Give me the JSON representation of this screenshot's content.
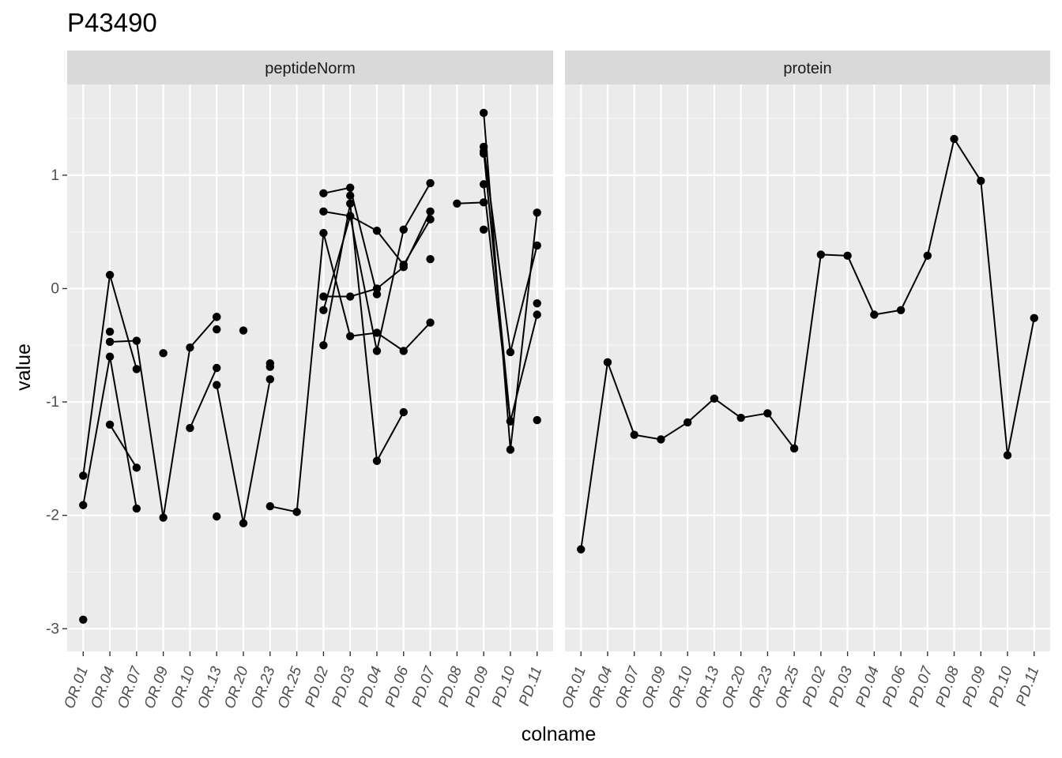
{
  "title": "P43490",
  "chart_data": {
    "type": "line",
    "ylabel": "value",
    "xlabel": "colname",
    "ylim": [
      -3.2,
      1.8
    ],
    "y_ticks": [
      -3,
      -2,
      -1,
      0,
      1
    ],
    "y_tick_labels": [
      "-3",
      "-2",
      "-1",
      "0",
      "1"
    ],
    "grid": true,
    "categories": [
      "OR.01",
      "OR.04",
      "OR.07",
      "OR.09",
      "OR.10",
      "OR.13",
      "OR.20",
      "OR.23",
      "OR.25",
      "PD.02",
      "PD.03",
      "PD.04",
      "PD.06",
      "PD.07",
      "PD.08",
      "PD.09",
      "PD.10",
      "PD.11"
    ],
    "panels": [
      {
        "name": "peptideNorm",
        "series": [
          {
            "values": [
              -1.65,
              0.12,
              -0.71,
              null,
              null,
              null,
              null,
              null,
              null,
              0.84,
              0.89,
              -0.05,
              null,
              null,
              null,
              1.25,
              -0.56,
              0.38
            ]
          },
          {
            "values": [
              -1.91,
              -0.6,
              -1.94,
              null,
              null,
              -0.25,
              null,
              -1.92,
              -1.97,
              0.49,
              -0.42,
              -0.39,
              -0.55,
              -0.3,
              null,
              1.55,
              -1.42,
              0.67
            ]
          },
          {
            "values": [
              null,
              -0.38,
              null,
              null,
              -1.23,
              -0.7,
              null,
              -0.69,
              null,
              0.68,
              0.64,
              -0.55,
              0.52,
              0.93,
              null,
              1.21,
              -1.17,
              -0.23
            ]
          },
          {
            "values": [
              null,
              -0.47,
              -0.46,
              -2.02,
              -0.52,
              -0.25,
              null,
              -0.66,
              null,
              -0.07,
              -0.07,
              0.0,
              0.19,
              0.68,
              null,
              0.92,
              -1.17,
              null
            ]
          },
          {
            "values": [
              null,
              -1.2,
              -1.58,
              null,
              null,
              -0.85,
              -2.07,
              -0.8,
              null,
              -0.19,
              0.64,
              0.51,
              0.21,
              0.61,
              null,
              0.52,
              null,
              null
            ]
          },
          {
            "values": [
              null,
              null,
              null,
              null,
              null,
              null,
              -0.37,
              null,
              null,
              -0.5,
              0.75,
              -1.52,
              -1.09,
              null,
              null,
              null,
              null,
              null
            ]
          },
          {
            "values": [
              null,
              null,
              null,
              null,
              null,
              null,
              null,
              null,
              null,
              null,
              0.82,
              null,
              null,
              null,
              0.75,
              0.76,
              null,
              null
            ]
          },
          {
            "values": [
              null,
              null,
              null,
              null,
              null,
              null,
              null,
              null,
              null,
              null,
              null,
              null,
              null,
              null,
              null,
              1.19,
              null,
              null
            ]
          },
          {
            "values": [
              -2.92,
              null,
              null,
              -0.57,
              null,
              -0.36,
              null,
              null,
              null,
              null,
              null,
              null,
              null,
              0.26,
              null,
              null,
              null,
              -0.13
            ]
          },
          {
            "values": [
              null,
              null,
              null,
              null,
              null,
              -2.01,
              null,
              null,
              null,
              null,
              null,
              null,
              null,
              null,
              null,
              null,
              null,
              -1.16
            ]
          }
        ]
      },
      {
        "name": "protein",
        "series": [
          {
            "values": [
              -2.3,
              -0.65,
              -1.29,
              -1.33,
              -1.18,
              -0.97,
              -1.14,
              -1.1,
              -1.41,
              0.3,
              0.29,
              -0.23,
              -0.19,
              0.29,
              1.32,
              0.95,
              -1.47,
              -0.26
            ]
          }
        ]
      }
    ]
  }
}
